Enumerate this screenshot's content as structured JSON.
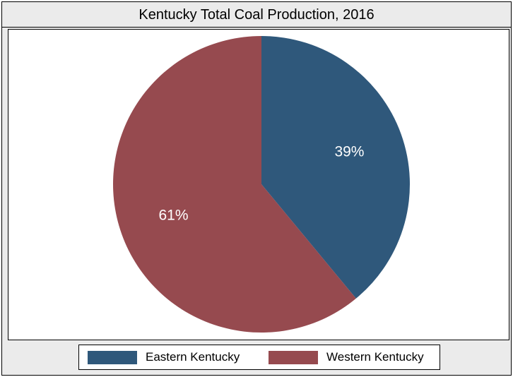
{
  "chart_data": {
    "type": "pie",
    "title": "Kentucky Total Coal Production, 2016",
    "slices": [
      {
        "name": "Eastern Kentucky",
        "value": 39,
        "label": "39%",
        "color": "#2f587b"
      },
      {
        "name": "Western Kentucky",
        "value": 61,
        "label": "61%",
        "color": "#964a4f"
      }
    ],
    "legend_position": "bottom"
  }
}
